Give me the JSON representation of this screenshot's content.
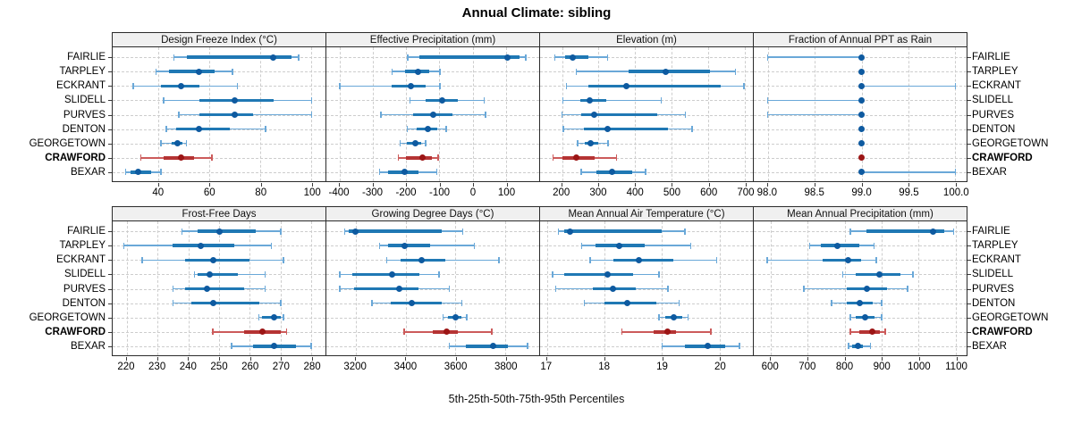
{
  "title": "Annual Climate: sibling",
  "caption": "5th-25th-50th-75th-95th Percentiles",
  "row_labels": [
    "FAIRLIE",
    "TARPLEY",
    "ECKRANT",
    "SLIDELL",
    "PURVES",
    "DENTON",
    "GEORGETOWN",
    "CRAWFORD",
    "BEXAR"
  ],
  "highlighted_row": "CRAWFORD",
  "colors": {
    "blue_whisker": "#6AA8D8",
    "blue_box": "#1F78B4",
    "blue_dot": "#0E5AA0",
    "red_whisker": "#CC5B5B",
    "red_box": "#B53434",
    "red_dot": "#9C1515",
    "strip_bg": "#F0F0F0",
    "grid": "#CDCDCD",
    "border": "#2B2B2B"
  },
  "chart_data": {
    "type": "dotplot-percentile-intervals",
    "layout": "2 rows x 4 columns of panels, shared category axis, grid dashed on",
    "percentile_order": [
      "p5",
      "p25",
      "p50",
      "p75",
      "p95"
    ],
    "categories": [
      "FAIRLIE",
      "TARPLEY",
      "ECKRANT",
      "SLIDELL",
      "PURVES",
      "DENTON",
      "GEORGETOWN",
      "CRAWFORD",
      "BEXAR"
    ],
    "panels": [
      {
        "title": "Design Freeze Index (°C)",
        "xlim": [
          22,
          105.5
        ],
        "ticks": [
          40,
          60,
          80,
          100
        ],
        "tick_labels": [
          "40",
          "60",
          "80",
          "100"
        ],
        "values": {
          "FAIRLIE": [
            46,
            51,
            85,
            92,
            95
          ],
          "TARPLEY": [
            39,
            44,
            56,
            62,
            69
          ],
          "ECKRANT": [
            30,
            41,
            49,
            56,
            71
          ],
          "SLIDELL": [
            42,
            56,
            70,
            85,
            100
          ],
          "PURVES": [
            48,
            56,
            70,
            77,
            100
          ],
          "DENTON": [
            43,
            47,
            56,
            68,
            82
          ],
          "GEORGETOWN": [
            41,
            45,
            47.5,
            49.5,
            51
          ],
          "CRAWFORD": [
            33,
            42,
            49,
            54,
            61
          ],
          "BEXAR": [
            27,
            29,
            32,
            37,
            41
          ]
        }
      },
      {
        "title": "Effective Precipitation (mm)",
        "xlim": [
          -440,
          200
        ],
        "ticks": [
          -400,
          -300,
          -200,
          -100,
          0,
          100
        ],
        "tick_labels": [
          "-400",
          "-300",
          "-200",
          "-100",
          "0",
          "100"
        ],
        "values": {
          "FAIRLIE": [
            -195,
            -160,
            105,
            140,
            160
          ],
          "TARPLEY": [
            -242,
            -203,
            -164,
            -131,
            -99
          ],
          "ECKRANT": [
            -400,
            -245,
            -185,
            -142,
            -99
          ],
          "SLIDELL": [
            -188,
            -142,
            -93,
            -44,
            35
          ],
          "PURVES": [
            -276,
            -178,
            -120,
            -62,
            39
          ],
          "DENTON": [
            -197,
            -169,
            -135,
            -106,
            -79
          ],
          "GEORGETOWN": [
            -218,
            -197,
            -173,
            -155,
            -142
          ],
          "CRAWFORD": [
            -224,
            -200,
            -151,
            -124,
            -104
          ],
          "BEXAR": [
            -280,
            -254,
            -206,
            -164,
            -108
          ]
        }
      },
      {
        "title": "Elevation (m)",
        "xlim": [
          140,
          722
        ],
        "ticks": [
          200,
          300,
          400,
          500,
          600,
          700
        ],
        "tick_labels": [
          "200",
          "300",
          "400",
          "500",
          "600",
          "700"
        ],
        "values": {
          "FAIRLIE": [
            180,
            208,
            230,
            272,
            325
          ],
          "TARPLEY": [
            239,
            381,
            483,
            605,
            674
          ],
          "ECKRANT": [
            212,
            272,
            375,
            633,
            698
          ],
          "SLIDELL": [
            202,
            251,
            276,
            322,
            471
          ],
          "PURVES": [
            200,
            253,
            289,
            460,
            537
          ],
          "DENTON": [
            204,
            259,
            324,
            489,
            556
          ],
          "GEORGETOWN": [
            243,
            263,
            279,
            298,
            326
          ],
          "CRAWFORD": [
            176,
            200,
            238,
            289,
            349
          ],
          "BEXAR": [
            253,
            293,
            337,
            391,
            428
          ]
        }
      },
      {
        "title": "Fraction of Annual PPT as Rain",
        "xlim": [
          97.85,
          100.12
        ],
        "ticks": [
          98.0,
          98.5,
          99.0,
          99.5,
          100.0
        ],
        "tick_labels": [
          "98.0",
          "98.5",
          "99.0",
          "99.5",
          "100.0"
        ],
        "values": {
          "FAIRLIE": [
            98,
            99,
            99,
            99,
            99
          ],
          "TARPLEY": [
            99,
            99,
            99,
            99,
            99
          ],
          "ECKRANT": [
            99,
            99,
            99,
            99,
            100
          ],
          "SLIDELL": [
            98,
            99,
            99,
            99,
            99
          ],
          "PURVES": [
            98,
            99,
            99,
            99,
            99
          ],
          "DENTON": [
            99,
            99,
            99,
            99,
            99
          ],
          "GEORGETOWN": [
            99,
            99,
            99,
            99,
            99
          ],
          "CRAWFORD": [
            99,
            99,
            99,
            99,
            99
          ],
          "BEXAR": [
            99,
            99,
            99,
            99,
            100
          ]
        }
      },
      {
        "title": "Frost-Free Days",
        "xlim": [
          215.4,
          284.6
        ],
        "ticks": [
          220,
          230,
          240,
          250,
          260,
          270,
          280
        ],
        "tick_labels": [
          "220",
          "230",
          "240",
          "250",
          "260",
          "270",
          "280"
        ],
        "values": {
          "FAIRLIE": [
            238,
            243,
            250,
            262,
            270
          ],
          "TARPLEY": [
            219,
            235,
            244,
            255,
            267
          ],
          "ECKRANT": [
            225,
            239,
            248,
            260,
            271
          ],
          "SLIDELL": [
            242,
            243,
            247,
            256,
            265
          ],
          "PURVES": [
            235,
            239,
            246,
            258,
            265
          ],
          "DENTON": [
            235,
            241,
            248,
            263,
            270
          ],
          "GEORGETOWN": [
            263,
            264,
            268,
            270,
            271
          ],
          "CRAWFORD": [
            248,
            258,
            264,
            270,
            272
          ],
          "BEXAR": [
            254,
            261,
            268,
            275,
            280
          ]
        }
      },
      {
        "title": "Growing Degree Days (°C)",
        "xlim": [
          3082,
          3936
        ],
        "ticks": [
          3200,
          3400,
          3600,
          3800
        ],
        "tick_labels": [
          "3200",
          "3400",
          "3600",
          "3800"
        ],
        "values": {
          "FAIRLIE": [
            3155,
            3170,
            3200,
            3545,
            3630
          ],
          "TARPLEY": [
            3295,
            3330,
            3395,
            3500,
            3675
          ],
          "ECKRANT": [
            3325,
            3380,
            3465,
            3560,
            3775
          ],
          "SLIDELL": [
            3135,
            3185,
            3345,
            3455,
            3535
          ],
          "PURVES": [
            3135,
            3195,
            3375,
            3450,
            3575
          ],
          "DENTON": [
            3265,
            3340,
            3425,
            3545,
            3625
          ],
          "GEORGETOWN": [
            3550,
            3570,
            3600,
            3625,
            3645
          ],
          "CRAWFORD": [
            3395,
            3510,
            3565,
            3610,
            3745
          ],
          "BEXAR": [
            3575,
            3640,
            3750,
            3810,
            3890
          ]
        }
      },
      {
        "title": "Mean Annual Air Temperature (°C)",
        "xlim": [
          16.88,
          20.58
        ],
        "ticks": [
          17,
          18,
          19,
          20
        ],
        "tick_labels": [
          "17",
          "18",
          "19",
          "20"
        ],
        "values": {
          "FAIRLIE": [
            17.2,
            17.3,
            17.4,
            19.0,
            19.4
          ],
          "TARPLEY": [
            17.6,
            17.85,
            18.25,
            18.7,
            19.5
          ],
          "ECKRANT": [
            17.75,
            18.15,
            18.6,
            19.2,
            19.95
          ],
          "SLIDELL": [
            17.1,
            17.3,
            18.05,
            18.5,
            18.95
          ],
          "PURVES": [
            17.15,
            17.8,
            18.15,
            18.55,
            19.1
          ],
          "DENTON": [
            17.65,
            18.0,
            18.4,
            18.9,
            19.3
          ],
          "GEORGETOWN": [
            18.95,
            19.05,
            19.2,
            19.35,
            19.45
          ],
          "CRAWFORD": [
            18.3,
            18.85,
            19.1,
            19.25,
            19.85
          ],
          "BEXAR": [
            19.0,
            19.4,
            19.8,
            20.1,
            20.35
          ]
        }
      },
      {
        "title": "Mean Annual Precipitation (mm)",
        "xlim": [
          554,
          1130
        ],
        "ticks": [
          600,
          700,
          800,
          900,
          1000,
          1100
        ],
        "tick_labels": [
          "600",
          "700",
          "800",
          "900",
          "1000",
          "1100"
        ],
        "values": {
          "FAIRLIE": [
            815,
            860,
            1040,
            1070,
            1095
          ],
          "TARPLEY": [
            705,
            735,
            780,
            840,
            880
          ],
          "ECKRANT": [
            590,
            740,
            810,
            845,
            885
          ],
          "SLIDELL": [
            795,
            830,
            895,
            950,
            985
          ],
          "PURVES": [
            690,
            805,
            860,
            915,
            970
          ],
          "DENTON": [
            765,
            805,
            840,
            875,
            900
          ],
          "GEORGETOWN": [
            815,
            830,
            855,
            880,
            900
          ],
          "CRAWFORD": [
            815,
            840,
            875,
            895,
            910
          ],
          "BEXAR": [
            810,
            820,
            835,
            850,
            870
          ]
        }
      }
    ]
  }
}
